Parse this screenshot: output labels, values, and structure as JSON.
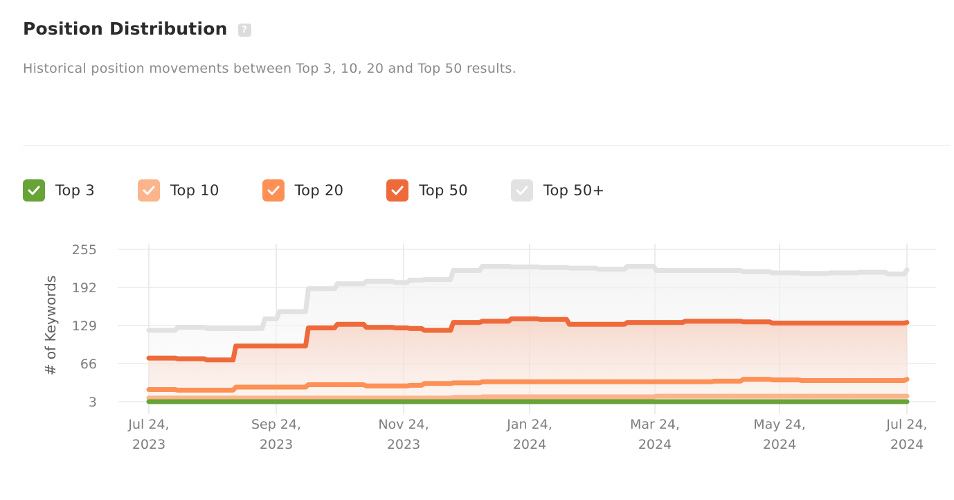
{
  "header": {
    "title": "Position Distribution",
    "help_icon": "question-mark-icon",
    "subtitle": "Historical position movements between Top 3, 10, 20 and Top 50 results."
  },
  "legend": [
    {
      "label": "Top 3",
      "color": "#67a337",
      "checked": true
    },
    {
      "label": "Top 10",
      "color": "#fcb48a",
      "checked": true
    },
    {
      "label": "Top 20",
      "color": "#fd9155",
      "checked": true
    },
    {
      "label": "Top 50",
      "color": "#ef6a3a",
      "checked": true
    },
    {
      "label": "Top 50+",
      "color": "#e2e2e2",
      "checked": true
    }
  ],
  "chart_data": {
    "type": "line",
    "title": "Position Distribution",
    "xlabel": "",
    "ylabel": "# of Keywords",
    "ylim": [
      3,
      255
    ],
    "yticks": [
      3,
      66,
      129,
      192,
      255
    ],
    "xticks": [
      "Jul 24, 2023",
      "Sep 24, 2023",
      "Nov 24, 2023",
      "Jan 24, 2024",
      "Mar 24, 2024",
      "May 24, 2024",
      "Jul 24, 2024"
    ],
    "grid": true,
    "legend_position": "top",
    "x": [
      "2023-07-24",
      "2023-08-07",
      "2023-08-21",
      "2023-09-04",
      "2023-09-18",
      "2023-09-25",
      "2023-10-09",
      "2023-10-23",
      "2023-11-06",
      "2023-11-20",
      "2023-11-27",
      "2023-12-04",
      "2023-12-18",
      "2024-01-01",
      "2024-01-15",
      "2024-01-29",
      "2024-02-12",
      "2024-02-26",
      "2024-03-11",
      "2024-03-25",
      "2024-04-08",
      "2024-04-22",
      "2024-05-06",
      "2024-05-20",
      "2024-06-03",
      "2024-06-17",
      "2024-07-01",
      "2024-07-15",
      "2024-07-24"
    ],
    "series": [
      {
        "name": "Top 50+",
        "values": [
          121,
          126,
          124,
          124,
          140,
          152,
          190,
          198,
          202,
          200,
          204,
          205,
          220,
          227,
          226,
          225,
          224,
          222,
          227,
          220,
          220,
          220,
          218,
          216,
          215,
          216,
          217,
          214,
          221
        ]
      },
      {
        "name": "Top 50",
        "values": [
          75,
          74,
          72,
          95,
          95,
          95,
          125,
          131,
          126,
          125,
          124,
          121,
          134,
          136,
          140,
          139,
          131,
          131,
          134,
          134,
          136,
          136,
          135,
          133,
          133,
          133,
          133,
          133,
          134
        ]
      },
      {
        "name": "Top 20",
        "values": [
          23,
          22,
          22,
          27,
          27,
          27,
          31,
          31,
          29,
          29,
          30,
          33,
          34,
          36,
          36,
          36,
          36,
          36,
          36,
          36,
          36,
          37,
          40,
          39,
          38,
          38,
          38,
          38,
          40
        ]
      },
      {
        "name": "Top 10",
        "values": [
          9,
          9,
          9,
          9,
          9,
          9,
          9,
          9,
          9,
          9,
          9,
          9,
          10,
          11,
          11,
          11,
          11,
          11,
          11,
          12,
          12,
          12,
          12,
          12,
          12,
          12,
          12,
          12,
          12
        ]
      },
      {
        "name": "Top 3",
        "values": [
          3,
          3,
          3,
          3,
          3,
          3,
          3,
          3,
          3,
          3,
          3,
          3,
          3,
          3,
          3,
          3,
          3,
          3,
          3,
          3,
          3,
          3,
          3,
          3,
          3,
          3,
          3,
          3,
          3
        ]
      }
    ]
  }
}
